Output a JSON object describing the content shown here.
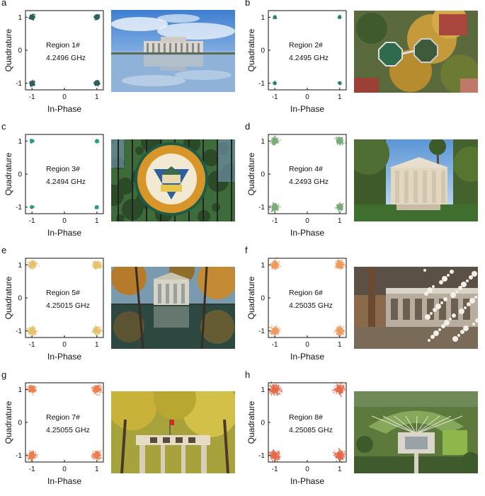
{
  "chart_data": [
    {
      "type": "scatter",
      "panel_label": "a",
      "region": "Region 1#",
      "frequency": "4.2496 GHz",
      "xlabel": "In-Phase",
      "ylabel": "Quadrature",
      "xticks": [
        "-1",
        "0",
        "1"
      ],
      "yticks": [
        "-1",
        "0",
        "1"
      ],
      "xlim": [
        -1.2,
        1.2
      ],
      "ylim": [
        -1.2,
        1.2
      ],
      "constellation_points": [
        [
          -1,
          1
        ],
        [
          1,
          1
        ],
        [
          -1,
          -1
        ],
        [
          1,
          -1
        ]
      ],
      "spread": 0.06,
      "color": "#2f5f5f",
      "photo": "library-building-reflection"
    },
    {
      "type": "scatter",
      "panel_label": "b",
      "region": "Region 2#",
      "frequency": "4.2495 GHz",
      "xlabel": "In-Phase",
      "ylabel": "Quadrature",
      "xticks": [
        "-1",
        "0",
        "1"
      ],
      "yticks": [
        "-1",
        "0",
        "1"
      ],
      "xlim": [
        -1.2,
        1.2
      ],
      "ylim": [
        -1.2,
        1.2
      ],
      "constellation_points": [
        [
          -1,
          1
        ],
        [
          1,
          1
        ],
        [
          -1,
          -1
        ],
        [
          1,
          -1
        ]
      ],
      "spread": 0.03,
      "color": "#2f7f6f",
      "photo": "aerial-campus-trees"
    },
    {
      "type": "scatter",
      "panel_label": "c",
      "region": "Region 3#",
      "frequency": "4.2494 GHz",
      "xlabel": "In-Phase",
      "ylabel": "Quadrature",
      "xticks": [
        "-1",
        "0",
        "1"
      ],
      "yticks": [
        "-1",
        "0",
        "1"
      ],
      "xlim": [
        -1.2,
        1.2
      ],
      "ylim": [
        -1.2,
        1.2
      ],
      "constellation_points": [
        [
          -1,
          1
        ],
        [
          1,
          1
        ],
        [
          -1,
          -1
        ],
        [
          1,
          -1
        ]
      ],
      "spread": 0.035,
      "color": "#2e9a8a",
      "photo": "university-emblem-gate"
    },
    {
      "type": "scatter",
      "panel_label": "d",
      "region": "Region 4#",
      "frequency": "4.2493 GHz",
      "xlabel": "In-Phase",
      "ylabel": "Quadrature",
      "xticks": [
        "-1",
        "0",
        "1"
      ],
      "yticks": [
        "-1",
        "0",
        "1"
      ],
      "xlim": [
        -1.2,
        1.2
      ],
      "ylim": [
        -1.2,
        1.2
      ],
      "constellation_points": [
        [
          -1,
          1
        ],
        [
          1,
          1
        ],
        [
          -1,
          -1
        ],
        [
          1,
          -1
        ]
      ],
      "spread": 0.09,
      "color": "#7aab78",
      "photo": "columned-hall-palms"
    },
    {
      "type": "scatter",
      "panel_label": "e",
      "region": "Region 5#",
      "frequency": "4.25015 GHz",
      "xlabel": "In-Phase",
      "ylabel": "Quadrature",
      "xticks": [
        "-1",
        "0",
        "1"
      ],
      "yticks": [
        "-1",
        "0",
        "1"
      ],
      "xlim": [
        -1.2,
        1.2
      ],
      "ylim": [
        -1.2,
        1.2
      ],
      "constellation_points": [
        [
          -1,
          1
        ],
        [
          1,
          1
        ],
        [
          -1,
          -1
        ],
        [
          1,
          -1
        ]
      ],
      "spread": 0.1,
      "color": "#e6c270",
      "photo": "pond-reflection-building"
    },
    {
      "type": "scatter",
      "panel_label": "f",
      "region": "Region 6#",
      "frequency": "4.25035 GHz",
      "xlabel": "In-Phase",
      "ylabel": "Quadrature",
      "xticks": [
        "-1",
        "0",
        "1"
      ],
      "yticks": [
        "-1",
        "0",
        "1"
      ],
      "xlim": [
        -1.2,
        1.2
      ],
      "ylim": [
        -1.2,
        1.2
      ],
      "constellation_points": [
        [
          -1,
          1
        ],
        [
          1,
          1
        ],
        [
          -1,
          -1
        ],
        [
          1,
          -1
        ]
      ],
      "spread": 0.1,
      "color": "#ef9a5e",
      "photo": "blossoms-and-building"
    },
    {
      "type": "scatter",
      "panel_label": "g",
      "region": "Region 7#",
      "frequency": "4.25055 GHz",
      "xlabel": "In-Phase",
      "ylabel": "Quadrature",
      "xticks": [
        "-1",
        "0",
        "1"
      ],
      "yticks": [
        "-1",
        "0",
        "1"
      ],
      "xlim": [
        -1.2,
        1.2
      ],
      "ylim": [
        -1.2,
        1.2
      ],
      "constellation_points": [
        [
          -1,
          1
        ],
        [
          1,
          1
        ],
        [
          -1,
          -1
        ],
        [
          1,
          -1
        ]
      ],
      "spread": 0.1,
      "color": "#ee7f4e",
      "photo": "memorial-archway-trees"
    },
    {
      "type": "scatter",
      "panel_label": "h",
      "region": "Region 8#",
      "frequency": "4.25085 GHz",
      "xlabel": "In-Phase",
      "ylabel": "Quadrature",
      "xticks": [
        "-1",
        "0",
        "1"
      ],
      "yticks": [
        "-1",
        "0",
        "1"
      ],
      "xlim": [
        -1.2,
        1.2
      ],
      "ylim": [
        -1.2,
        1.2
      ],
      "constellation_points": [
        [
          -1,
          1
        ],
        [
          1,
          1
        ],
        [
          -1,
          -1
        ],
        [
          1,
          -1
        ]
      ],
      "spread": 0.13,
      "color": "#e56a4a",
      "photo": "aerial-campus-lawn"
    }
  ]
}
